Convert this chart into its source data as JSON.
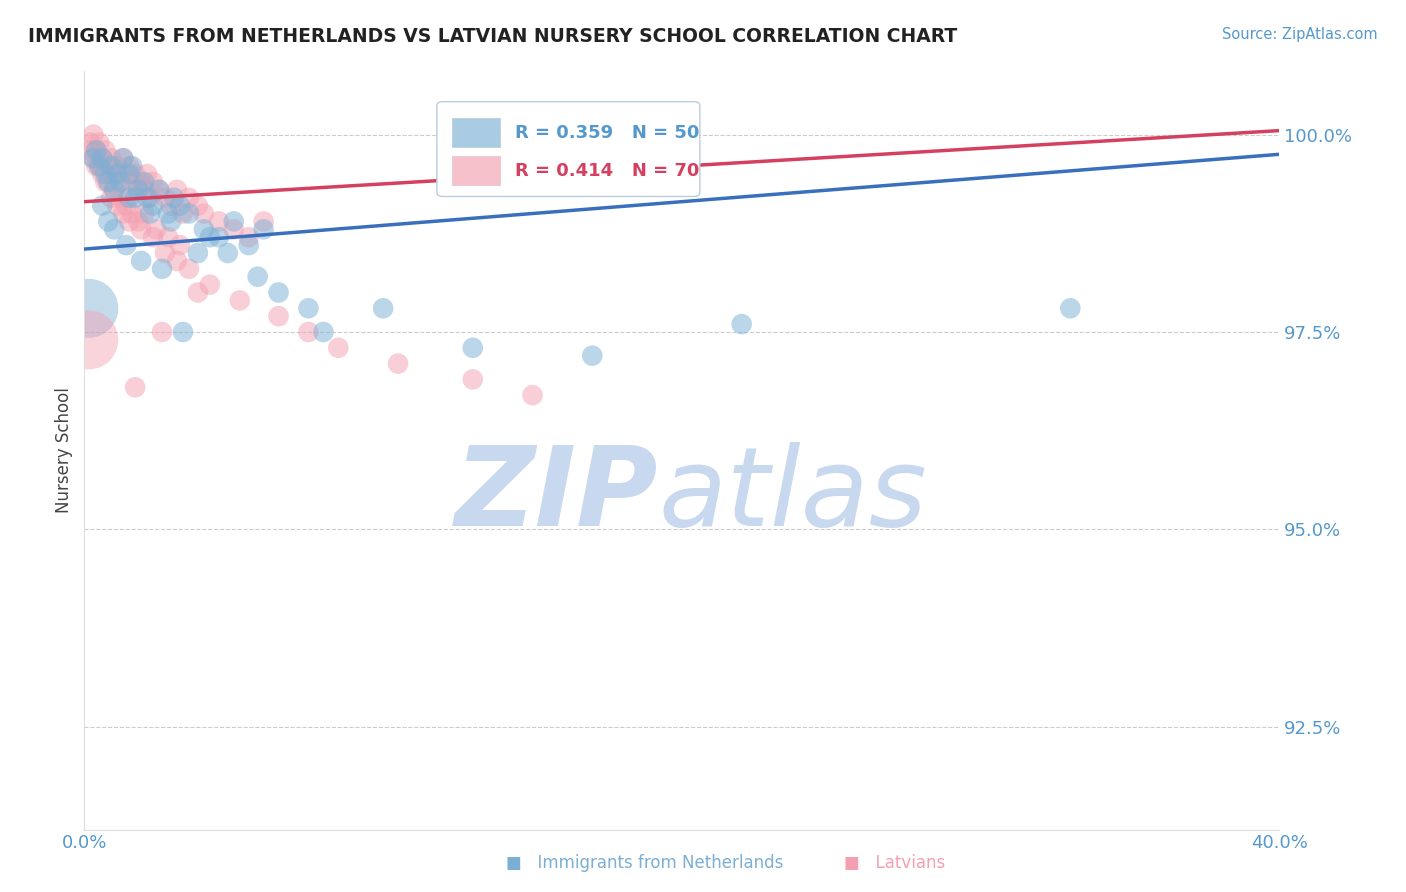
{
  "title": "IMMIGRANTS FROM NETHERLANDS VS LATVIAN NURSERY SCHOOL CORRELATION CHART",
  "source": "Source: ZipAtlas.com",
  "ylabel": "Nursery School",
  "y_ticks": [
    92.5,
    95.0,
    97.5,
    100.0
  ],
  "y_tick_labels": [
    "92.5%",
    "95.0%",
    "97.5%",
    "100.0%"
  ],
  "x_min": 0.0,
  "x_max": 40.0,
  "y_min": 91.2,
  "y_max": 100.8,
  "blue_R": 0.359,
  "blue_N": 50,
  "pink_R": 0.414,
  "pink_N": 70,
  "blue_color": "#7bafd4",
  "pink_color": "#f4a0b0",
  "blue_line_color": "#3a6fbd",
  "pink_line_color": "#d44060",
  "title_color": "#222222",
  "axis_color": "#5599cc",
  "grid_color": "#cccccc",
  "watermark_zip_color": "#c8d8ee",
  "watermark_atlas_color": "#c8d8ee",
  "blue_line_x0": 0.0,
  "blue_line_y0": 98.55,
  "blue_line_x1": 40.0,
  "blue_line_y1": 99.75,
  "pink_line_x0": 0.0,
  "pink_line_y0": 99.15,
  "pink_line_x1": 40.0,
  "pink_line_y1": 100.05,
  "blue_scatter_x": [
    0.4,
    0.5,
    0.6,
    0.7,
    0.8,
    0.9,
    1.0,
    1.1,
    1.2,
    1.3,
    1.5,
    1.6,
    1.8,
    2.0,
    2.1,
    2.3,
    2.5,
    2.8,
    3.0,
    3.2,
    3.5,
    4.0,
    4.5,
    5.0,
    5.5,
    6.0,
    0.3,
    1.7,
    2.2,
    3.8,
    4.2,
    0.6,
    0.8,
    1.0,
    1.4,
    1.9,
    2.6,
    3.3,
    6.5,
    7.5,
    8.0,
    10.0,
    13.0,
    17.0,
    22.0,
    33.0,
    5.8,
    4.8,
    2.9,
    1.5
  ],
  "blue_scatter_y": [
    99.8,
    99.6,
    99.7,
    99.5,
    99.4,
    99.6,
    99.3,
    99.5,
    99.4,
    99.7,
    99.5,
    99.6,
    99.3,
    99.4,
    99.2,
    99.1,
    99.3,
    99.0,
    99.2,
    99.1,
    99.0,
    98.8,
    98.7,
    98.9,
    98.6,
    98.8,
    99.7,
    99.2,
    99.0,
    98.5,
    98.7,
    99.1,
    98.9,
    98.8,
    98.6,
    98.4,
    98.3,
    97.5,
    98.0,
    97.8,
    97.5,
    97.8,
    97.3,
    97.2,
    97.6,
    97.8,
    98.2,
    98.5,
    98.9,
    99.2
  ],
  "blue_scatter_s": [
    180,
    180,
    180,
    180,
    180,
    180,
    180,
    180,
    180,
    180,
    180,
    180,
    180,
    180,
    180,
    180,
    180,
    180,
    180,
    180,
    180,
    180,
    180,
    180,
    180,
    180,
    180,
    180,
    180,
    180,
    180,
    180,
    180,
    180,
    180,
    180,
    180,
    180,
    180,
    180,
    180,
    180,
    180,
    180,
    180,
    180,
    180,
    180,
    180,
    180
  ],
  "pink_scatter_x": [
    0.2,
    0.3,
    0.4,
    0.5,
    0.6,
    0.7,
    0.8,
    0.9,
    1.0,
    1.1,
    1.2,
    1.3,
    1.4,
    1.5,
    1.6,
    1.7,
    1.8,
    1.9,
    2.0,
    2.1,
    2.2,
    2.3,
    2.5,
    2.7,
    2.9,
    3.1,
    3.3,
    3.5,
    3.8,
    4.0,
    4.5,
    5.0,
    5.5,
    6.0,
    0.4,
    0.6,
    0.8,
    1.0,
    1.2,
    1.4,
    1.6,
    1.8,
    2.0,
    2.4,
    2.8,
    3.2,
    0.3,
    0.5,
    0.7,
    0.9,
    1.1,
    1.3,
    1.5,
    1.9,
    2.3,
    2.7,
    3.1,
    3.5,
    4.2,
    5.2,
    6.5,
    7.5,
    8.5,
    10.5,
    13.0,
    15.0,
    0.2,
    3.8,
    2.6,
    1.7
  ],
  "pink_scatter_y": [
    99.9,
    100.0,
    99.8,
    99.9,
    99.7,
    99.8,
    99.6,
    99.7,
    99.5,
    99.6,
    99.4,
    99.7,
    99.5,
    99.6,
    99.4,
    99.5,
    99.3,
    99.4,
    99.3,
    99.5,
    99.2,
    99.4,
    99.3,
    99.2,
    99.1,
    99.3,
    99.0,
    99.2,
    99.1,
    99.0,
    98.9,
    98.8,
    98.7,
    98.9,
    99.6,
    99.5,
    99.4,
    99.3,
    99.2,
    99.1,
    99.0,
    98.9,
    99.0,
    98.8,
    98.7,
    98.6,
    99.7,
    99.6,
    99.4,
    99.2,
    99.1,
    99.0,
    98.9,
    98.8,
    98.7,
    98.5,
    98.4,
    98.3,
    98.1,
    97.9,
    97.7,
    97.5,
    97.3,
    97.1,
    96.9,
    96.7,
    99.8,
    98.0,
    97.5,
    96.8
  ],
  "blue_large_x": [
    0.15
  ],
  "blue_large_y": [
    97.8
  ],
  "pink_large_x": [
    0.15
  ],
  "pink_large_y": [
    97.4
  ]
}
